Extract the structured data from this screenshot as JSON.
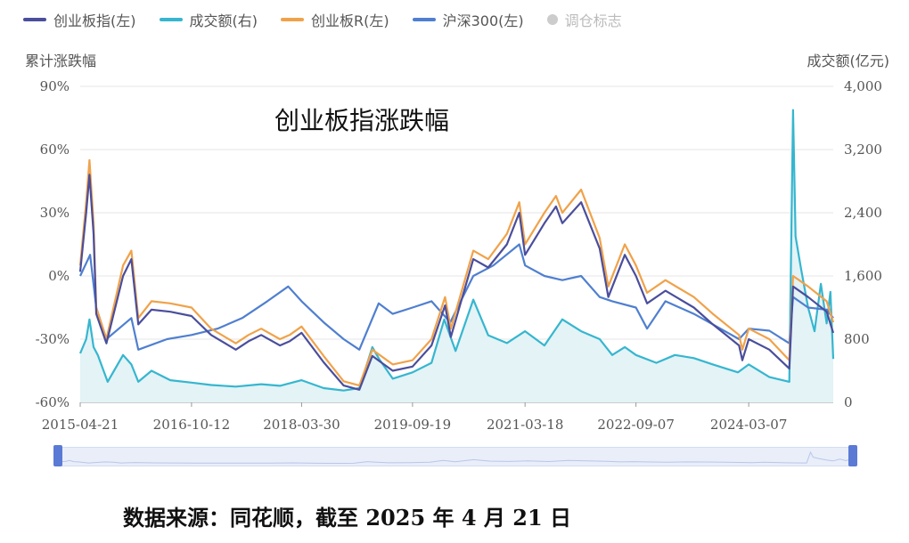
{
  "legend": {
    "items": [
      {
        "label": "创业板指(左)",
        "color": "#4a4e9c",
        "kind": "line"
      },
      {
        "label": "成交额(右)",
        "color": "#36b6cf",
        "kind": "line"
      },
      {
        "label": "创业板R(左)",
        "color": "#f0a24a",
        "kind": "line"
      },
      {
        "label": "沪深300(左)",
        "color": "#4f7fd0",
        "kind": "line"
      },
      {
        "label": "调仓标志",
        "color": "#cccccc",
        "kind": "dot"
      }
    ]
  },
  "axes": {
    "left_title": "累计涨跌幅",
    "right_title": "成交额(亿元)"
  },
  "title": "创业板指涨跌幅",
  "source": "数据来源：同花顺，截至 2025 年 4 月 21 日",
  "colors": {
    "grid": "#e6e6e6",
    "axis_text": "#555555",
    "volume_fill": "#e3f3f6"
  },
  "chart_data": {
    "type": "line",
    "x_type": "date",
    "x_ticks": [
      "2015-04-21",
      "2016-10-12",
      "2018-03-30",
      "2019-09-19",
      "2021-03-18",
      "2022-09-07",
      "2024-03-07"
    ],
    "x_range": [
      "2015-04-21",
      "2025-04-21"
    ],
    "y_left": {
      "ticks": [
        "-60%",
        "-30%",
        "0%",
        "30%",
        "60%",
        "90%"
      ],
      "range": [
        -60,
        90
      ],
      "unit": "%"
    },
    "y_right": {
      "ticks": [
        "0",
        "800",
        "1,600",
        "2,400",
        "3,200",
        "4,000"
      ],
      "range": [
        0,
        4000
      ]
    },
    "grid": true,
    "legend_position": "top",
    "series": [
      {
        "name": "成交额(右)",
        "axis": "right",
        "color": "#36b6cf",
        "area": true,
        "points": [
          [
            "2015-04-21",
            620
          ],
          [
            "2015-05-20",
            800
          ],
          [
            "2015-06-05",
            1050
          ],
          [
            "2015-06-25",
            700
          ],
          [
            "2015-07-15",
            600
          ],
          [
            "2015-09-01",
            260
          ],
          [
            "2015-11-15",
            600
          ],
          [
            "2015-12-25",
            480
          ],
          [
            "2016-01-28",
            260
          ],
          [
            "2016-04-01",
            400
          ],
          [
            "2016-07-01",
            280
          ],
          [
            "2016-10-12",
            250
          ],
          [
            "2017-01-15",
            220
          ],
          [
            "2017-05-15",
            200
          ],
          [
            "2017-09-15",
            230
          ],
          [
            "2017-12-15",
            210
          ],
          [
            "2018-03-30",
            280
          ],
          [
            "2018-07-15",
            180
          ],
          [
            "2018-10-20",
            150
          ],
          [
            "2019-01-04",
            180
          ],
          [
            "2019-03-08",
            700
          ],
          [
            "2019-04-10",
            550
          ],
          [
            "2019-06-15",
            300
          ],
          [
            "2019-09-19",
            380
          ],
          [
            "2019-12-20",
            500
          ],
          [
            "2020-02-20",
            1050
          ],
          [
            "2020-04-15",
            650
          ],
          [
            "2020-07-10",
            1300
          ],
          [
            "2020-09-20",
            850
          ],
          [
            "2020-12-20",
            750
          ],
          [
            "2021-03-18",
            900
          ],
          [
            "2021-06-20",
            720
          ],
          [
            "2021-09-15",
            1050
          ],
          [
            "2021-12-15",
            900
          ],
          [
            "2022-03-15",
            800
          ],
          [
            "2022-05-15",
            600
          ],
          [
            "2022-07-15",
            700
          ],
          [
            "2022-09-07",
            600
          ],
          [
            "2022-12-15",
            500
          ],
          [
            "2023-03-15",
            600
          ],
          [
            "2023-06-15",
            560
          ],
          [
            "2023-09-15",
            480
          ],
          [
            "2024-01-15",
            380
          ],
          [
            "2024-03-07",
            480
          ],
          [
            "2024-06-15",
            320
          ],
          [
            "2024-09-20",
            260
          ],
          [
            "2024-10-08",
            3700
          ],
          [
            "2024-10-20",
            2100
          ],
          [
            "2024-11-15",
            1700
          ],
          [
            "2024-12-20",
            1200
          ],
          [
            "2025-01-20",
            900
          ],
          [
            "2025-02-20",
            1500
          ],
          [
            "2025-03-20",
            1000
          ],
          [
            "2025-04-07",
            1400
          ],
          [
            "2025-04-21",
            550
          ]
        ]
      },
      {
        "name": "沪深300(左)",
        "axis": "left",
        "color": "#4f7fd0",
        "area": false,
        "points": [
          [
            "2015-04-21",
            0
          ],
          [
            "2015-06-08",
            10
          ],
          [
            "2015-07-08",
            -15
          ],
          [
            "2015-08-26",
            -30
          ],
          [
            "2015-12-25",
            -20
          ],
          [
            "2016-01-28",
            -35
          ],
          [
            "2016-06-15",
            -30
          ],
          [
            "2016-10-12",
            -28
          ],
          [
            "2017-02-15",
            -25
          ],
          [
            "2017-06-15",
            -20
          ],
          [
            "2017-10-15",
            -12
          ],
          [
            "2018-01-24",
            -5
          ],
          [
            "2018-03-30",
            -12
          ],
          [
            "2018-07-15",
            -22
          ],
          [
            "2018-10-20",
            -30
          ],
          [
            "2019-01-04",
            -35
          ],
          [
            "2019-04-08",
            -13
          ],
          [
            "2019-06-15",
            -18
          ],
          [
            "2019-09-19",
            -15
          ],
          [
            "2019-12-20",
            -12
          ],
          [
            "2020-03-20",
            -22
          ],
          [
            "2020-07-10",
            0
          ],
          [
            "2020-10-15",
            5
          ],
          [
            "2021-02-18",
            15
          ],
          [
            "2021-03-18",
            5
          ],
          [
            "2021-06-20",
            0
          ],
          [
            "2021-09-15",
            -2
          ],
          [
            "2021-12-15",
            0
          ],
          [
            "2022-03-15",
            -10
          ],
          [
            "2022-05-15",
            -12
          ],
          [
            "2022-09-07",
            -15
          ],
          [
            "2022-10-31",
            -25
          ],
          [
            "2023-01-28",
            -12
          ],
          [
            "2023-06-15",
            -18
          ],
          [
            "2023-09-15",
            -23
          ],
          [
            "2024-01-20",
            -30
          ],
          [
            "2024-03-07",
            -25
          ],
          [
            "2024-06-15",
            -26
          ],
          [
            "2024-09-20",
            -32
          ],
          [
            "2024-10-08",
            -10
          ],
          [
            "2024-12-20",
            -15
          ],
          [
            "2025-03-20",
            -16
          ],
          [
            "2025-04-21",
            -20
          ]
        ]
      },
      {
        "name": "创业板R(左)",
        "axis": "left",
        "color": "#f0a24a",
        "area": false,
        "points": [
          [
            "2015-04-21",
            5
          ],
          [
            "2015-05-20",
            35
          ],
          [
            "2015-06-05",
            55
          ],
          [
            "2015-06-25",
            25
          ],
          [
            "2015-07-08",
            -15
          ],
          [
            "2015-08-26",
            -30
          ],
          [
            "2015-11-15",
            5
          ],
          [
            "2015-12-25",
            12
          ],
          [
            "2016-01-28",
            -20
          ],
          [
            "2016-04-01",
            -12
          ],
          [
            "2016-07-01",
            -13
          ],
          [
            "2016-10-12",
            -15
          ],
          [
            "2017-01-15",
            -25
          ],
          [
            "2017-05-15",
            -32
          ],
          [
            "2017-07-15",
            -28
          ],
          [
            "2017-09-15",
            -25
          ],
          [
            "2017-12-15",
            -30
          ],
          [
            "2018-01-31",
            -28
          ],
          [
            "2018-03-30",
            -24
          ],
          [
            "2018-07-15",
            -38
          ],
          [
            "2018-10-20",
            -50
          ],
          [
            "2019-01-04",
            -52
          ],
          [
            "2019-03-08",
            -35
          ],
          [
            "2019-06-15",
            -42
          ],
          [
            "2019-09-19",
            -40
          ],
          [
            "2019-12-20",
            -30
          ],
          [
            "2020-02-24",
            -10
          ],
          [
            "2020-03-23",
            -25
          ],
          [
            "2020-07-10",
            12
          ],
          [
            "2020-09-20",
            8
          ],
          [
            "2020-12-20",
            20
          ],
          [
            "2021-02-18",
            35
          ],
          [
            "2021-03-18",
            15
          ],
          [
            "2021-06-20",
            30
          ],
          [
            "2021-08-15",
            38
          ],
          [
            "2021-09-15",
            30
          ],
          [
            "2021-12-15",
            41
          ],
          [
            "2022-03-15",
            18
          ],
          [
            "2022-04-26",
            -5
          ],
          [
            "2022-07-15",
            15
          ],
          [
            "2022-09-07",
            5
          ],
          [
            "2022-10-31",
            -8
          ],
          [
            "2023-01-28",
            -2
          ],
          [
            "2023-06-15",
            -10
          ],
          [
            "2023-09-15",
            -18
          ],
          [
            "2024-01-20",
            -28
          ],
          [
            "2024-02-05",
            -35
          ],
          [
            "2024-03-07",
            -25
          ],
          [
            "2024-06-15",
            -30
          ],
          [
            "2024-09-20",
            -40
          ],
          [
            "2024-10-08",
            0
          ],
          [
            "2024-12-20",
            -5
          ],
          [
            "2025-03-20",
            -12
          ],
          [
            "2025-04-21",
            -22
          ]
        ]
      },
      {
        "name": "创业板指(左)",
        "axis": "left",
        "color": "#4a4e9c",
        "area": false,
        "points": [
          [
            "2015-04-21",
            2
          ],
          [
            "2015-05-20",
            30
          ],
          [
            "2015-06-05",
            48
          ],
          [
            "2015-06-25",
            20
          ],
          [
            "2015-07-08",
            -18
          ],
          [
            "2015-08-26",
            -32
          ],
          [
            "2015-11-15",
            0
          ],
          [
            "2015-12-25",
            8
          ],
          [
            "2016-01-28",
            -23
          ],
          [
            "2016-04-01",
            -16
          ],
          [
            "2016-07-01",
            -17
          ],
          [
            "2016-10-12",
            -19
          ],
          [
            "2017-01-15",
            -28
          ],
          [
            "2017-05-15",
            -35
          ],
          [
            "2017-07-15",
            -31
          ],
          [
            "2017-09-15",
            -28
          ],
          [
            "2017-12-15",
            -33
          ],
          [
            "2018-01-31",
            -31
          ],
          [
            "2018-03-30",
            -27
          ],
          [
            "2018-07-15",
            -41
          ],
          [
            "2018-10-20",
            -52
          ],
          [
            "2019-01-04",
            -54
          ],
          [
            "2019-03-08",
            -38
          ],
          [
            "2019-06-15",
            -45
          ],
          [
            "2019-09-19",
            -43
          ],
          [
            "2019-12-20",
            -33
          ],
          [
            "2020-02-24",
            -14
          ],
          [
            "2020-03-23",
            -29
          ],
          [
            "2020-07-10",
            8
          ],
          [
            "2020-09-20",
            4
          ],
          [
            "2020-12-20",
            15
          ],
          [
            "2021-02-18",
            30
          ],
          [
            "2021-03-18",
            10
          ],
          [
            "2021-06-20",
            25
          ],
          [
            "2021-08-15",
            33
          ],
          [
            "2021-09-15",
            25
          ],
          [
            "2021-12-15",
            35
          ],
          [
            "2022-03-15",
            13
          ],
          [
            "2022-04-26",
            -10
          ],
          [
            "2022-07-15",
            10
          ],
          [
            "2022-09-07",
            0
          ],
          [
            "2022-10-31",
            -13
          ],
          [
            "2023-01-28",
            -7
          ],
          [
            "2023-06-15",
            -15
          ],
          [
            "2023-09-15",
            -23
          ],
          [
            "2024-01-20",
            -33
          ],
          [
            "2024-02-05",
            -40
          ],
          [
            "2024-03-07",
            -30
          ],
          [
            "2024-06-15",
            -35
          ],
          [
            "2024-09-20",
            -44
          ],
          [
            "2024-10-08",
            -5
          ],
          [
            "2024-12-20",
            -10
          ],
          [
            "2025-03-20",
            -17
          ],
          [
            "2025-04-21",
            -27
          ]
        ]
      }
    ]
  }
}
